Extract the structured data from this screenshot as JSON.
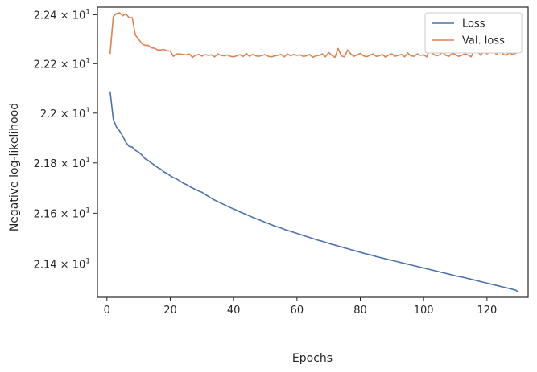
{
  "chart_data": {
    "type": "line",
    "title": "",
    "xlabel": "Epochs",
    "ylabel": "Negative log-likelihood",
    "xlim": [
      -3,
      133
    ],
    "ylim": [
      21.2696,
      22.4312
    ],
    "yscale": "log",
    "x_ticks": [
      0,
      20,
      40,
      60,
      80,
      100,
      120
    ],
    "x_tick_labels": [
      "0",
      "20",
      "40",
      "60",
      "80",
      "100",
      "120"
    ],
    "y_ticks": [
      21.4,
      21.6,
      21.8,
      22.0,
      22.2,
      22.4
    ],
    "y_tick_labels": [
      {
        "mant": "2.14",
        "base": "10",
        "exp": "1"
      },
      {
        "mant": "2.16",
        "base": "10",
        "exp": "1"
      },
      {
        "mant": "2.18",
        "base": "10",
        "exp": "1"
      },
      {
        "mant": "2.2",
        "base": "10",
        "exp": "1"
      },
      {
        "mant": "2.22",
        "base": "10",
        "exp": "1"
      },
      {
        "mant": "2.24",
        "base": "10",
        "exp": "1"
      }
    ],
    "grid": false,
    "legend_position": "top-right",
    "x": [
      1,
      2,
      3,
      4,
      5,
      6,
      7,
      8,
      9,
      10,
      11,
      12,
      13,
      14,
      15,
      16,
      17,
      18,
      19,
      20,
      21,
      22,
      23,
      24,
      25,
      26,
      27,
      28,
      29,
      30,
      31,
      32,
      33,
      34,
      35,
      36,
      37,
      38,
      39,
      40,
      41,
      42,
      43,
      44,
      45,
      46,
      47,
      48,
      49,
      50,
      51,
      52,
      53,
      54,
      55,
      56,
      57,
      58,
      59,
      60,
      61,
      62,
      63,
      64,
      65,
      66,
      67,
      68,
      69,
      70,
      71,
      72,
      73,
      74,
      75,
      76,
      77,
      78,
      79,
      80,
      81,
      82,
      83,
      84,
      85,
      86,
      87,
      88,
      89,
      90,
      91,
      92,
      93,
      94,
      95,
      96,
      97,
      98,
      99,
      100,
      101,
      102,
      103,
      104,
      105,
      106,
      107,
      108,
      109,
      110,
      111,
      112,
      113,
      114,
      115,
      116,
      117,
      118,
      119,
      120,
      121,
      122,
      123,
      124,
      125,
      126,
      127,
      128,
      129,
      130
    ],
    "series": [
      {
        "name": "Loss",
        "color": "#4c72b0",
        "values": [
          22.088,
          21.976,
          21.944,
          21.928,
          21.907,
          21.882,
          21.866,
          21.863,
          21.85,
          21.843,
          21.832,
          21.817,
          21.81,
          21.8,
          21.791,
          21.782,
          21.775,
          21.764,
          21.758,
          21.749,
          21.741,
          21.736,
          21.728,
          21.72,
          21.714,
          21.707,
          21.7,
          21.694,
          21.688,
          21.683,
          21.675,
          21.667,
          21.659,
          21.652,
          21.646,
          21.64,
          21.634,
          21.628,
          21.622,
          21.617,
          21.611,
          21.605,
          21.6,
          21.595,
          21.589,
          21.584,
          21.579,
          21.574,
          21.569,
          21.564,
          21.559,
          21.554,
          21.549,
          21.545,
          21.541,
          21.536,
          21.532,
          21.528,
          21.524,
          21.52,
          21.516,
          21.512,
          21.508,
          21.504,
          21.5,
          21.496,
          21.492,
          21.489,
          21.485,
          21.481,
          21.477,
          21.474,
          21.47,
          21.467,
          21.463,
          21.46,
          21.456,
          21.453,
          21.449,
          21.446,
          21.442,
          21.439,
          21.436,
          21.433,
          21.429,
          21.426,
          21.423,
          21.42,
          21.417,
          21.414,
          21.411,
          21.408,
          21.405,
          21.402,
          21.399,
          21.396,
          21.393,
          21.39,
          21.387,
          21.384,
          21.381,
          21.378,
          21.375,
          21.372,
          21.369,
          21.366,
          21.363,
          21.36,
          21.357,
          21.354,
          21.351,
          21.349,
          21.346,
          21.343,
          21.34,
          21.337,
          21.334,
          21.331,
          21.328,
          21.325,
          21.322,
          21.319,
          21.316,
          21.313,
          21.31,
          21.307,
          21.304,
          21.301,
          21.298,
          21.29
        ]
      },
      {
        "name": "Val. loss",
        "color": "#dd8452",
        "values": [
          22.24,
          22.392,
          22.405,
          22.408,
          22.396,
          22.404,
          22.388,
          22.388,
          22.316,
          22.301,
          22.282,
          22.275,
          22.275,
          22.265,
          22.263,
          22.256,
          22.256,
          22.258,
          22.252,
          22.252,
          22.23,
          22.24,
          22.24,
          22.238,
          22.236,
          22.24,
          22.226,
          22.234,
          22.238,
          22.231,
          22.237,
          22.234,
          22.236,
          22.228,
          22.24,
          22.234,
          22.232,
          22.236,
          22.23,
          22.228,
          22.232,
          22.237,
          22.229,
          22.242,
          22.23,
          22.238,
          22.232,
          22.23,
          22.234,
          22.237,
          22.23,
          22.228,
          22.232,
          22.234,
          22.238,
          22.228,
          22.24,
          22.232,
          22.238,
          22.234,
          22.236,
          22.23,
          22.232,
          22.238,
          22.226,
          22.232,
          22.234,
          22.24,
          22.228,
          22.246,
          22.234,
          22.226,
          22.262,
          22.232,
          22.228,
          22.256,
          22.24,
          22.23,
          22.236,
          22.242,
          22.232,
          22.228,
          22.234,
          22.24,
          22.23,
          22.232,
          22.238,
          22.226,
          22.236,
          22.24,
          22.23,
          22.234,
          22.238,
          22.228,
          22.244,
          22.232,
          22.23,
          22.24,
          22.234,
          22.236,
          22.228,
          22.262,
          22.24,
          22.232,
          22.236,
          22.248,
          22.234,
          22.23,
          22.242,
          22.238,
          22.23,
          22.234,
          22.24,
          22.236,
          22.228,
          22.256,
          22.252,
          22.234,
          22.252,
          22.24,
          22.25,
          22.256,
          22.236,
          22.252,
          22.24,
          22.234,
          22.244,
          22.238,
          22.242,
          22.248
        ]
      }
    ]
  }
}
